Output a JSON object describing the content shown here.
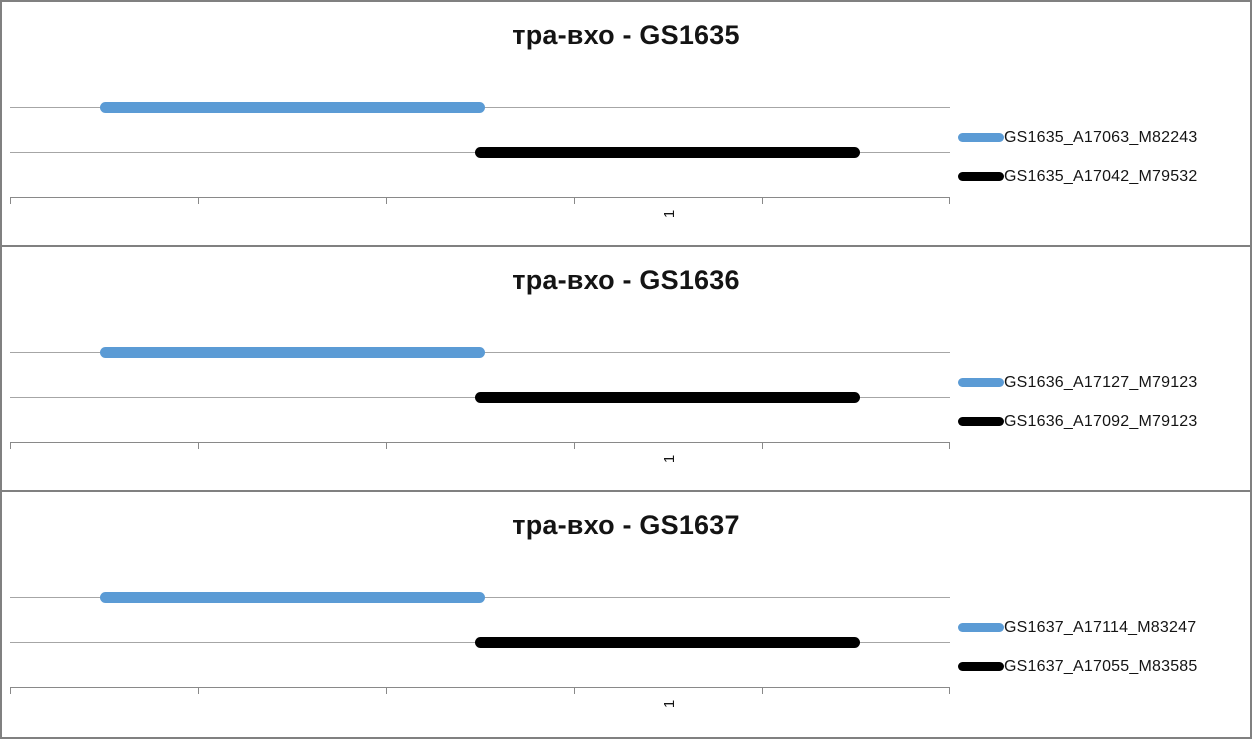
{
  "colors": {
    "series_blue": "#5B9BD5",
    "series_black": "#000000",
    "gridline": "#A6A6A6",
    "axis_line": "#898989",
    "panel_border": "#808080",
    "text": "#141414",
    "background": "#FFFFFF"
  },
  "chart_data": [
    {
      "type": "line",
      "title": "тра-вхо - GS1635",
      "xlabel": "",
      "ylabel": "",
      "grid": true,
      "legend_position": "right",
      "x_axis": {
        "tick_count": 6,
        "ticks_unlabeled": true,
        "category_label": "1",
        "category_label_x_frac": 0.702,
        "category_label_rotation_deg": -90
      },
      "series": [
        {
          "name": "GS1635_A17063_M82243",
          "color": "#5B9BD5",
          "row": "upper-gridline",
          "span_tick_units": [
            0.48,
            2.53
          ],
          "span_x_frac": [
            0.096,
            0.505
          ]
        },
        {
          "name": "GS1635_A17042_M79532",
          "color": "#000000",
          "row": "lower-gridline",
          "span_tick_units": [
            2.47,
            4.52
          ],
          "span_x_frac": [
            0.495,
            0.904
          ]
        }
      ]
    },
    {
      "type": "line",
      "title": "тра-вхо - GS1636",
      "xlabel": "",
      "ylabel": "",
      "grid": true,
      "legend_position": "right",
      "x_axis": {
        "tick_count": 6,
        "ticks_unlabeled": true,
        "category_label": "1",
        "category_label_x_frac": 0.702,
        "category_label_rotation_deg": -90
      },
      "series": [
        {
          "name": "GS1636_A17127_M79123",
          "color": "#5B9BD5",
          "row": "upper-gridline",
          "span_tick_units": [
            0.48,
            2.53
          ],
          "span_x_frac": [
            0.096,
            0.505
          ]
        },
        {
          "name": "GS1636_A17092_M79123",
          "color": "#000000",
          "row": "lower-gridline",
          "span_tick_units": [
            2.47,
            4.52
          ],
          "span_x_frac": [
            0.495,
            0.904
          ]
        }
      ]
    },
    {
      "type": "line",
      "title": "тра-вхо - GS1637",
      "xlabel": "",
      "ylabel": "",
      "grid": true,
      "legend_position": "right",
      "x_axis": {
        "tick_count": 6,
        "ticks_unlabeled": true,
        "category_label": "1",
        "category_label_x_frac": 0.702,
        "category_label_rotation_deg": -90
      },
      "series": [
        {
          "name": "GS1637_A17114_M83247",
          "color": "#5B9BD5",
          "row": "upper-gridline",
          "span_tick_units": [
            0.48,
            2.53
          ],
          "span_x_frac": [
            0.096,
            0.505
          ]
        },
        {
          "name": "GS1637_A17055_M83585",
          "color": "#000000",
          "row": "lower-gridline",
          "span_tick_units": [
            2.47,
            4.52
          ],
          "span_x_frac": [
            0.495,
            0.904
          ]
        }
      ]
    }
  ]
}
